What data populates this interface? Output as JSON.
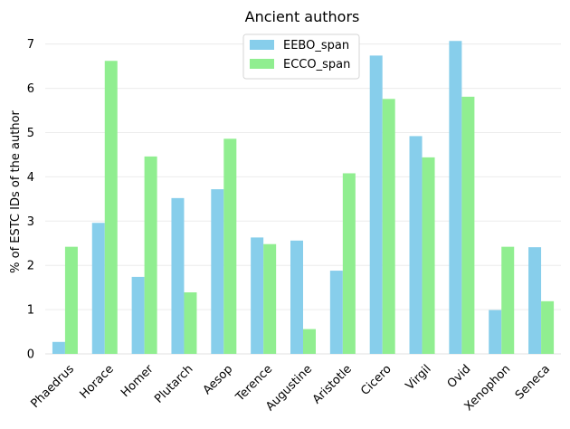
{
  "chart_data": {
    "type": "bar",
    "title": "Ancient authors",
    "xlabel": "",
    "ylabel": "% of ESTC IDs of the author",
    "ylim": [
      0,
      7.3
    ],
    "yticks": [
      0,
      1,
      2,
      3,
      4,
      5,
      6,
      7
    ],
    "grid": "horizontal",
    "legend_position": "top-center",
    "categories": [
      "Phaedrus",
      "Horace",
      "Homer",
      "Plutarch",
      "Aesop",
      "Terence",
      "Augustine",
      "Aristotle",
      "Cicero",
      "Virgil",
      "Ovid",
      "Xenophon",
      "Seneca"
    ],
    "series": [
      {
        "name": "EEBO_span",
        "color": "#87ceeb",
        "values": [
          0.27,
          2.96,
          1.74,
          3.52,
          3.72,
          2.63,
          2.56,
          1.88,
          6.74,
          4.92,
          7.07,
          0.99,
          2.41
        ]
      },
      {
        "name": "ECCO_span",
        "color": "#90ee90",
        "values": [
          2.42,
          6.62,
          4.46,
          1.39,
          4.86,
          2.48,
          0.56,
          4.08,
          5.76,
          4.44,
          5.81,
          2.42,
          1.19
        ]
      }
    ]
  }
}
